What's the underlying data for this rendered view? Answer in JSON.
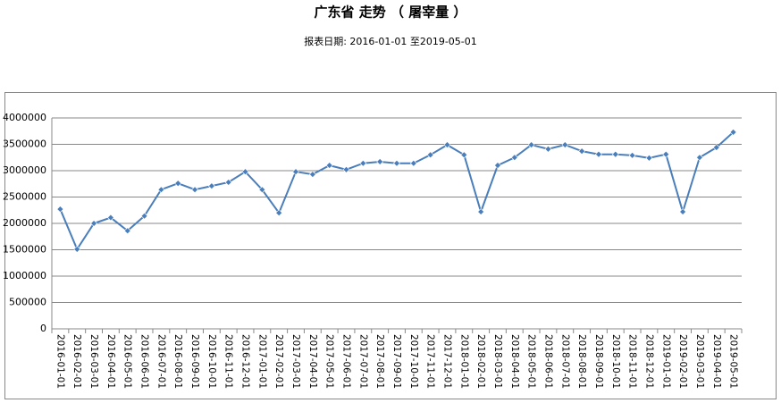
{
  "chart_data": {
    "type": "line",
    "title": "广东省 走势 （ 屠宰量 ）",
    "subtitle": "报表日期: 2016-01-01 至2019-05-01",
    "categories": [
      "2016-01-01",
      "2016-02-01",
      "2016-03-01",
      "2016-04-01",
      "2016-05-01",
      "2016-06-01",
      "2016-07-01",
      "2016-08-01",
      "2016-09-01",
      "2016-10-01",
      "2016-11-01",
      "2016-12-01",
      "2017-01-01",
      "2017-02-01",
      "2017-03-01",
      "2017-04-01",
      "2017-05-01",
      "2017-06-01",
      "2017-07-01",
      "2017-08-01",
      "2017-09-01",
      "2017-10-01",
      "2017-11-01",
      "2017-12-01",
      "2018-01-01",
      "2018-02-01",
      "2018-03-01",
      "2018-04-01",
      "2018-05-01",
      "2018-06-01",
      "2018-07-01",
      "2018-08-01",
      "2018-09-01",
      "2018-10-01",
      "2018-11-01",
      "2018-12-01",
      "2019-01-01",
      "2019-02-01",
      "2019-03-01",
      "2019-04-01",
      "2019-05-01"
    ],
    "values": [
      2270000,
      1510000,
      2000000,
      2110000,
      1860000,
      2140000,
      2640000,
      2760000,
      2640000,
      2710000,
      2780000,
      2980000,
      2640000,
      2200000,
      2980000,
      2930000,
      3100000,
      3020000,
      3140000,
      3170000,
      3140000,
      3140000,
      3300000,
      3490000,
      3300000,
      2220000,
      3100000,
      3250000,
      3490000,
      3410000,
      3490000,
      3370000,
      3310000,
      3310000,
      3290000,
      3240000,
      3310000,
      2220000,
      3250000,
      3440000,
      3730000
    ],
    "color": "#4a7ebb",
    "ylim": [
      0,
      4000000
    ],
    "yticks": [
      0,
      500000,
      1000000,
      1500000,
      2000000,
      2500000,
      3000000,
      3500000,
      4000000
    ],
    "grid": true
  }
}
